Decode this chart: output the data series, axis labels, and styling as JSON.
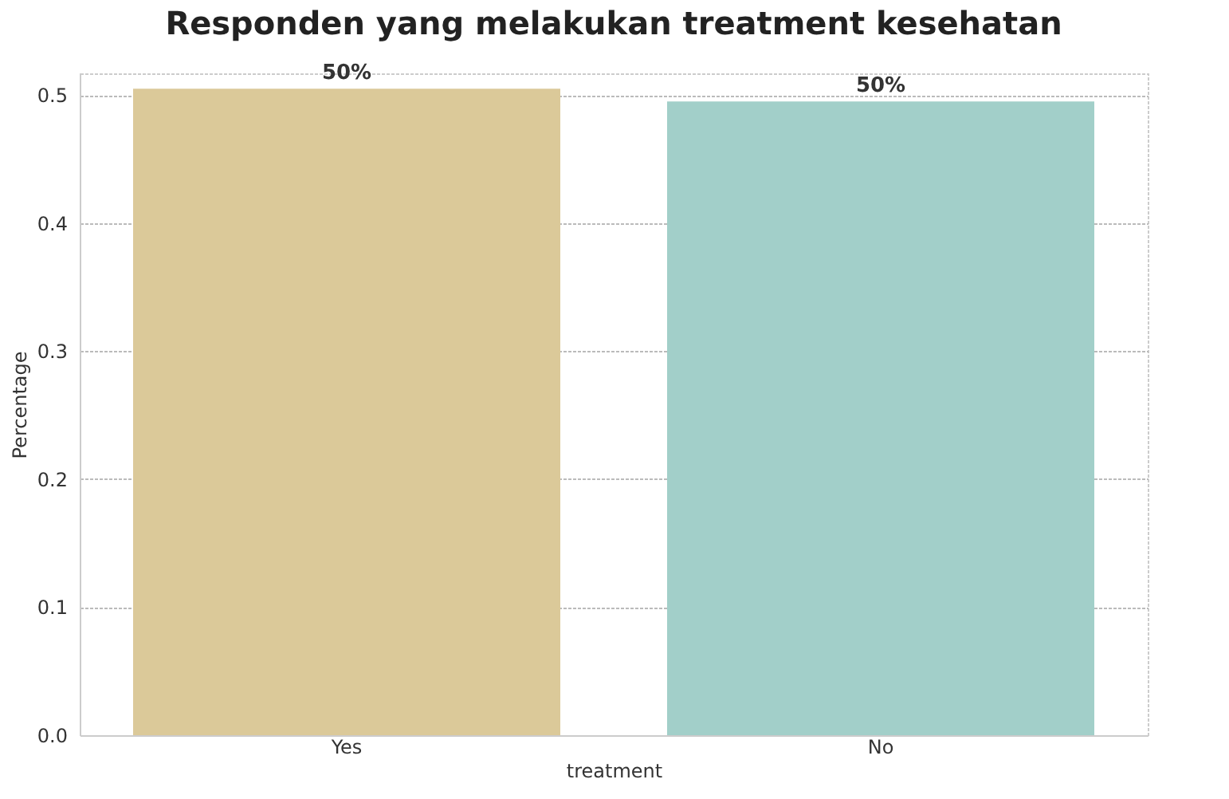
{
  "chart_data": {
    "type": "bar",
    "title": "Responden yang melakukan treatment kesehatan",
    "xlabel": "treatment",
    "ylabel": "Percentage",
    "categories": [
      "Yes",
      "No"
    ],
    "values": [
      0.505,
      0.495
    ],
    "colors": [
      "#dbc999",
      "#a2cfc9"
    ],
    "value_labels": [
      "50%",
      "50%"
    ],
    "ylim": [
      0,
      0.517
    ],
    "yticks": [
      {
        "value": 0,
        "label": "0.0"
      },
      0.1,
      0.2,
      0.3,
      0.4,
      0.5
    ],
    "grid": "y"
  }
}
